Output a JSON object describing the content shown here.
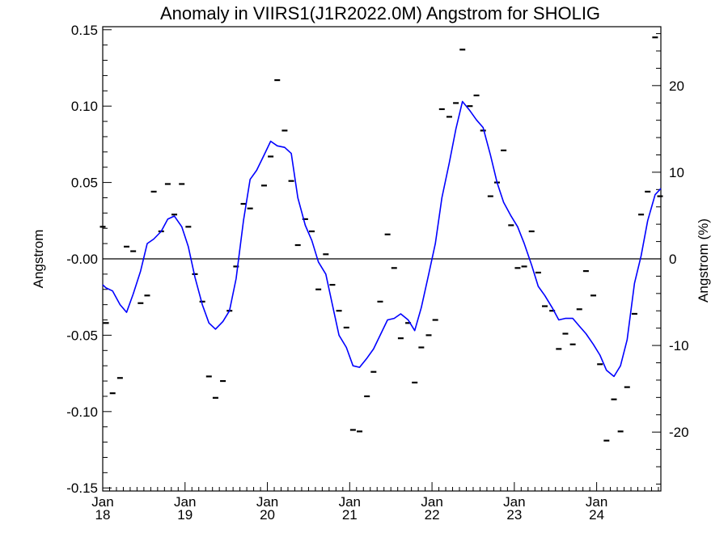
{
  "chart_data": {
    "type": "line",
    "title": "Anomaly in VIIRS1(J1R2022.0M) Angstrom for SHOLIG",
    "ylabel": "Angstrom",
    "ylabel_right": "Angstrom (%)",
    "xlabel": "",
    "ylim": [
      -0.152,
      0.152
    ],
    "ylim_right": [
      -26.8,
      26.8
    ],
    "xlim": [
      2018.0,
      2024.78
    ],
    "y_ticks": [
      {
        "value": 0.15,
        "label": "0.15"
      },
      {
        "value": 0.1,
        "label": "0.10"
      },
      {
        "value": 0.05,
        "label": "0.05"
      },
      {
        "value": 0.0,
        "label": "-0.00"
      },
      {
        "value": -0.05,
        "label": "-0.05"
      },
      {
        "value": -0.1,
        "label": "-0.10"
      },
      {
        "value": -0.15,
        "label": "-0.15"
      }
    ],
    "y_right_ticks": [
      {
        "value": 20,
        "label": "20"
      },
      {
        "value": 10,
        "label": "10"
      },
      {
        "value": 0,
        "label": "0"
      },
      {
        "value": -10,
        "label": "-10"
      },
      {
        "value": -20,
        "label": "-20"
      }
    ],
    "x_ticks": [
      {
        "value": 2018,
        "label_top": "Jan",
        "label_bottom": "18"
      },
      {
        "value": 2019,
        "label_top": "Jan",
        "label_bottom": "19"
      },
      {
        "value": 2020,
        "label_top": "Jan",
        "label_bottom": "20"
      },
      {
        "value": 2021,
        "label_top": "Jan",
        "label_bottom": "21"
      },
      {
        "value": 2022,
        "label_top": "Jan",
        "label_bottom": "22"
      },
      {
        "value": 2023,
        "label_top": "Jan",
        "label_bottom": "23"
      },
      {
        "value": 2024,
        "label_top": "Jan",
        "label_bottom": "24"
      }
    ],
    "reference_line": 0.0,
    "series": [
      {
        "kind": "markers",
        "color": "#000000",
        "points": [
          [
            2018.0,
            0.021
          ],
          [
            2018.04,
            -0.042
          ],
          [
            2018.12,
            -0.088
          ],
          [
            2018.21,
            -0.078
          ],
          [
            2018.29,
            0.008
          ],
          [
            2018.37,
            0.005
          ],
          [
            2018.46,
            -0.029
          ],
          [
            2018.54,
            -0.024
          ],
          [
            2018.62,
            0.044
          ],
          [
            2018.71,
            0.018
          ],
          [
            2018.79,
            0.049
          ],
          [
            2018.87,
            0.029
          ],
          [
            2018.96,
            0.049
          ],
          [
            2019.04,
            0.021
          ],
          [
            2019.12,
            -0.01
          ],
          [
            2019.21,
            -0.028
          ],
          [
            2019.29,
            -0.077
          ],
          [
            2019.37,
            -0.091
          ],
          [
            2019.46,
            -0.08
          ],
          [
            2019.54,
            -0.034
          ],
          [
            2019.62,
            -0.005
          ],
          [
            2019.71,
            0.036
          ],
          [
            2019.79,
            0.033
          ],
          [
            2019.96,
            0.048
          ],
          [
            2020.04,
            0.067
          ],
          [
            2020.12,
            0.117
          ],
          [
            2020.21,
            0.084
          ],
          [
            2020.29,
            0.051
          ],
          [
            2020.37,
            0.009
          ],
          [
            2020.46,
            0.026
          ],
          [
            2020.54,
            0.018
          ],
          [
            2020.62,
            -0.02
          ],
          [
            2020.71,
            0.003
          ],
          [
            2020.79,
            -0.017
          ],
          [
            2020.87,
            -0.034
          ],
          [
            2020.96,
            -0.045
          ],
          [
            2021.04,
            -0.112
          ],
          [
            2021.12,
            -0.113
          ],
          [
            2021.21,
            -0.09
          ],
          [
            2021.29,
            -0.074
          ],
          [
            2021.37,
            -0.028
          ],
          [
            2021.46,
            0.016
          ],
          [
            2021.54,
            -0.006
          ],
          [
            2021.62,
            -0.052
          ],
          [
            2021.71,
            -0.042
          ],
          [
            2021.79,
            -0.081
          ],
          [
            2021.87,
            -0.058
          ],
          [
            2021.96,
            -0.05
          ],
          [
            2022.04,
            -0.04
          ],
          [
            2022.12,
            0.098
          ],
          [
            2022.21,
            0.093
          ],
          [
            2022.29,
            0.102
          ],
          [
            2022.37,
            0.137
          ],
          [
            2022.46,
            0.1
          ],
          [
            2022.54,
            0.107
          ],
          [
            2022.62,
            0.084
          ],
          [
            2022.71,
            0.041
          ],
          [
            2022.79,
            0.05
          ],
          [
            2022.87,
            0.071
          ],
          [
            2022.96,
            0.022
          ],
          [
            2023.04,
            -0.006
          ],
          [
            2023.12,
            -0.005
          ],
          [
            2023.21,
            0.018
          ],
          [
            2023.29,
            -0.009
          ],
          [
            2023.37,
            -0.031
          ],
          [
            2023.46,
            -0.034
          ],
          [
            2023.54,
            -0.059
          ],
          [
            2023.62,
            -0.049
          ],
          [
            2023.71,
            -0.056
          ],
          [
            2023.79,
            -0.033
          ],
          [
            2023.87,
            -0.008
          ],
          [
            2023.96,
            -0.024
          ],
          [
            2024.04,
            -0.069
          ],
          [
            2024.12,
            -0.119
          ],
          [
            2024.21,
            -0.092
          ],
          [
            2024.29,
            -0.113
          ],
          [
            2024.37,
            -0.084
          ],
          [
            2024.46,
            -0.036
          ],
          [
            2024.54,
            0.029
          ],
          [
            2024.62,
            0.044
          ],
          [
            2024.71,
            0.145
          ],
          [
            2024.77,
            0.041
          ]
        ]
      },
      {
        "kind": "line",
        "color": "#0000ff",
        "points": [
          [
            2018.0,
            -0.017
          ],
          [
            2018.04,
            -0.019
          ],
          [
            2018.12,
            -0.021
          ],
          [
            2018.21,
            -0.03
          ],
          [
            2018.29,
            -0.035
          ],
          [
            2018.37,
            -0.023
          ],
          [
            2018.46,
            -0.008
          ],
          [
            2018.54,
            0.01
          ],
          [
            2018.62,
            0.013
          ],
          [
            2018.71,
            0.018
          ],
          [
            2018.79,
            0.026
          ],
          [
            2018.87,
            0.028
          ],
          [
            2018.96,
            0.021
          ],
          [
            2019.04,
            0.008
          ],
          [
            2019.12,
            -0.012
          ],
          [
            2019.21,
            -0.03
          ],
          [
            2019.29,
            -0.042
          ],
          [
            2019.37,
            -0.046
          ],
          [
            2019.46,
            -0.041
          ],
          [
            2019.54,
            -0.034
          ],
          [
            2019.62,
            -0.013
          ],
          [
            2019.71,
            0.025
          ],
          [
            2019.79,
            0.052
          ],
          [
            2019.87,
            0.058
          ],
          [
            2019.96,
            0.068
          ],
          [
            2020.04,
            0.077
          ],
          [
            2020.12,
            0.074
          ],
          [
            2020.21,
            0.073
          ],
          [
            2020.29,
            0.069
          ],
          [
            2020.37,
            0.04
          ],
          [
            2020.46,
            0.022
          ],
          [
            2020.54,
            0.012
          ],
          [
            2020.62,
            -0.002
          ],
          [
            2020.71,
            -0.01
          ],
          [
            2020.79,
            -0.03
          ],
          [
            2020.87,
            -0.05
          ],
          [
            2020.96,
            -0.058
          ],
          [
            2021.04,
            -0.07
          ],
          [
            2021.12,
            -0.071
          ],
          [
            2021.21,
            -0.065
          ],
          [
            2021.29,
            -0.059
          ],
          [
            2021.37,
            -0.05
          ],
          [
            2021.46,
            -0.04
          ],
          [
            2021.54,
            -0.039
          ],
          [
            2021.62,
            -0.036
          ],
          [
            2021.71,
            -0.04
          ],
          [
            2021.79,
            -0.047
          ],
          [
            2021.87,
            -0.032
          ],
          [
            2021.96,
            -0.01
          ],
          [
            2022.04,
            0.01
          ],
          [
            2022.12,
            0.04
          ],
          [
            2022.21,
            0.063
          ],
          [
            2022.29,
            0.085
          ],
          [
            2022.37,
            0.103
          ],
          [
            2022.46,
            0.097
          ],
          [
            2022.54,
            0.091
          ],
          [
            2022.62,
            0.086
          ],
          [
            2022.71,
            0.068
          ],
          [
            2022.79,
            0.05
          ],
          [
            2022.87,
            0.037
          ],
          [
            2022.96,
            0.028
          ],
          [
            2023.04,
            0.021
          ],
          [
            2023.12,
            0.01
          ],
          [
            2023.21,
            -0.004
          ],
          [
            2023.29,
            -0.018
          ],
          [
            2023.37,
            -0.024
          ],
          [
            2023.46,
            -0.032
          ],
          [
            2023.54,
            -0.04
          ],
          [
            2023.62,
            -0.039
          ],
          [
            2023.71,
            -0.039
          ],
          [
            2023.79,
            -0.044
          ],
          [
            2023.87,
            -0.049
          ],
          [
            2023.96,
            -0.056
          ],
          [
            2024.04,
            -0.063
          ],
          [
            2024.12,
            -0.073
          ],
          [
            2024.21,
            -0.077
          ],
          [
            2024.29,
            -0.07
          ],
          [
            2024.37,
            -0.053
          ],
          [
            2024.46,
            -0.016
          ],
          [
            2024.54,
            0.002
          ],
          [
            2024.62,
            0.025
          ],
          [
            2024.71,
            0.042
          ],
          [
            2024.78,
            0.046
          ]
        ]
      }
    ]
  }
}
